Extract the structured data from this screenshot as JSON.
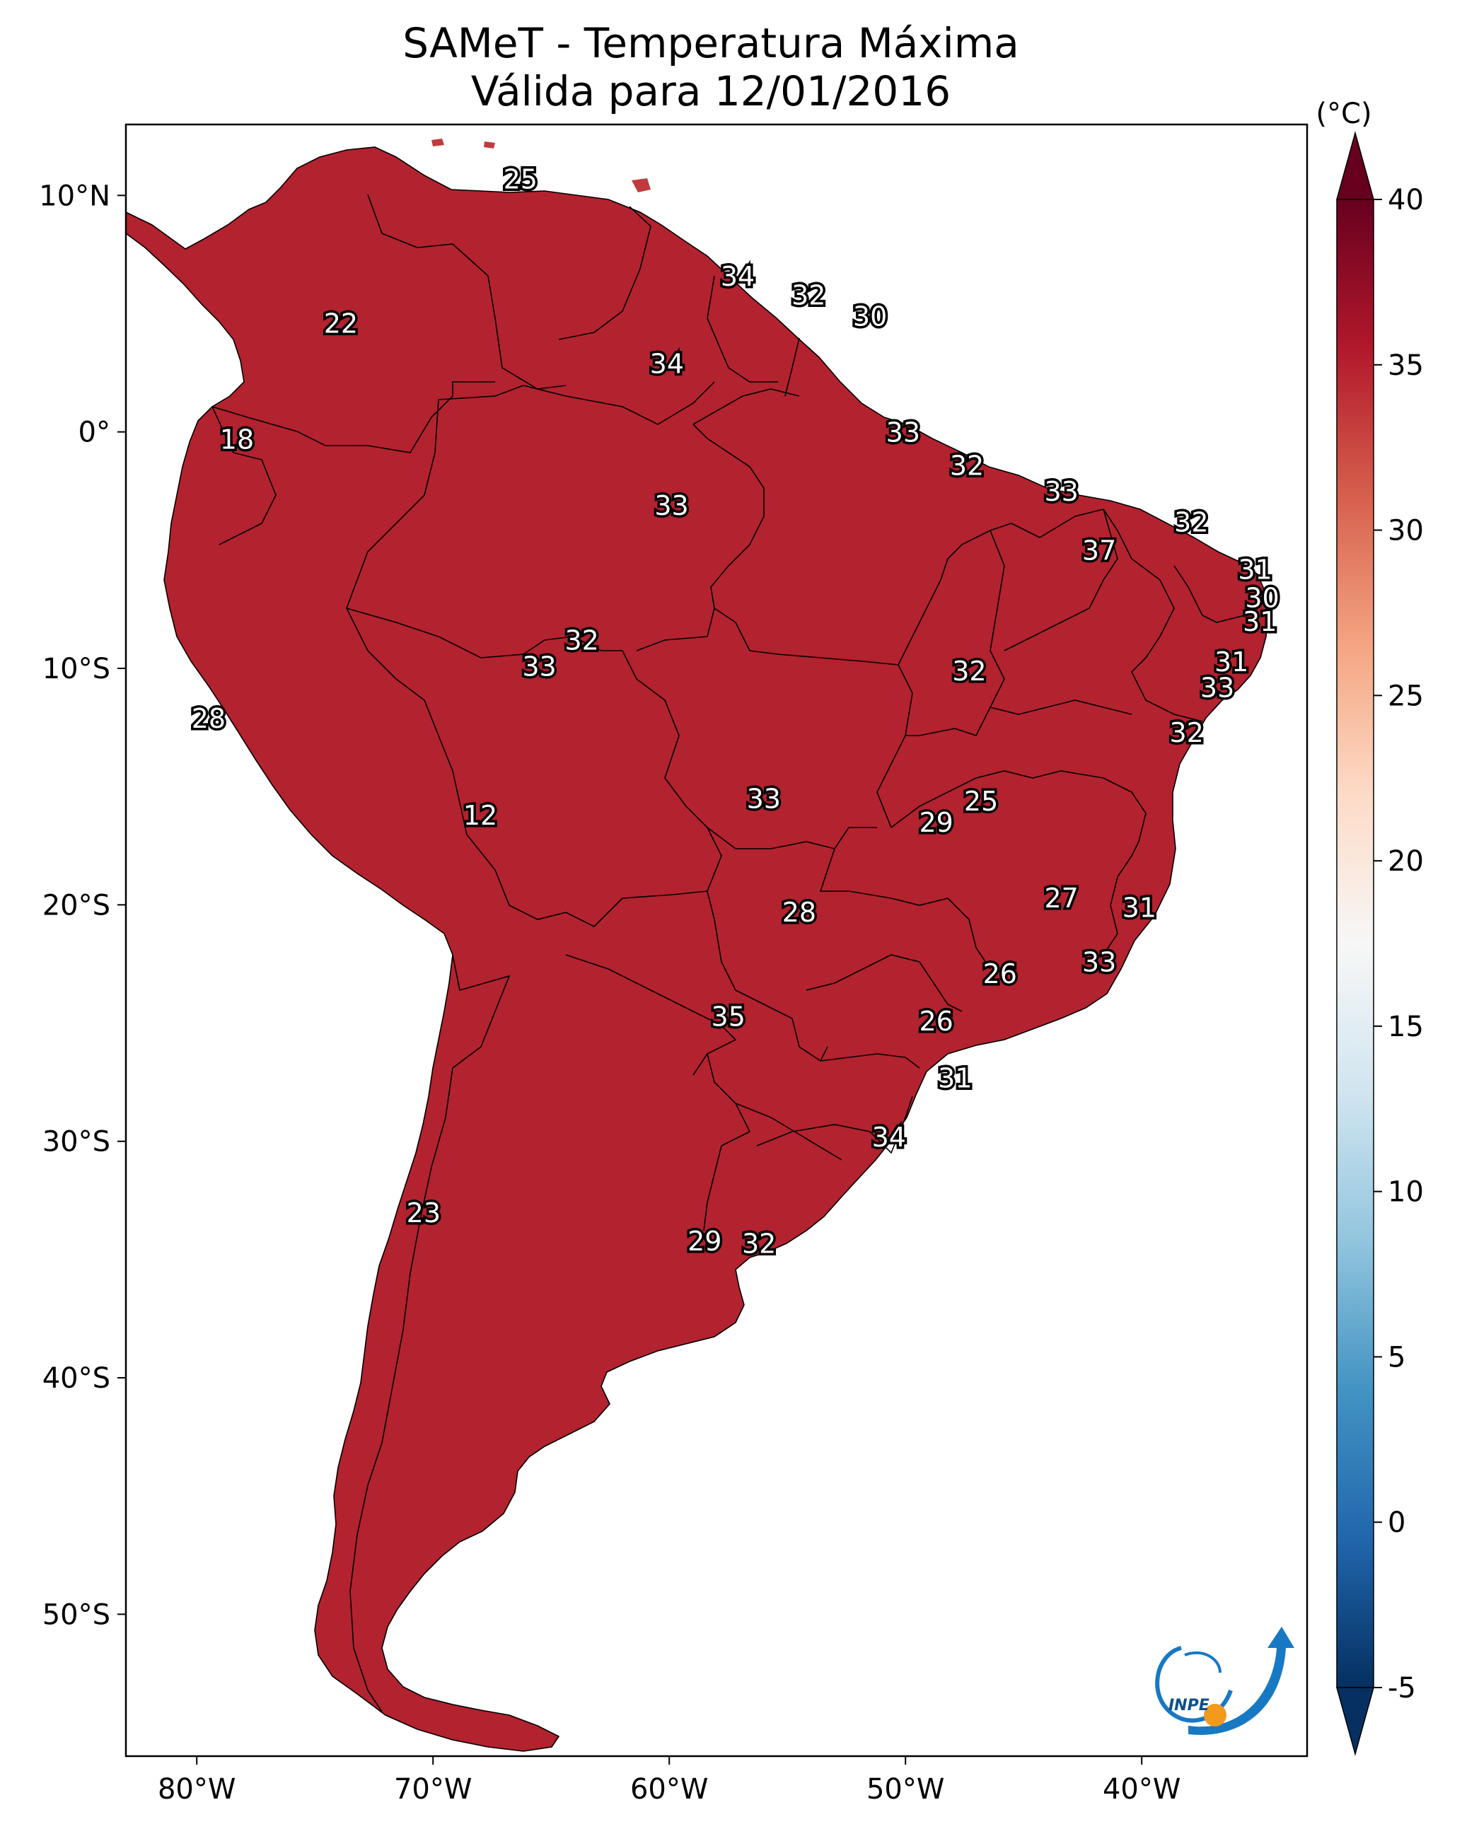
{
  "title": {
    "line1": "SAMeT - Temperatura Máxima",
    "line2": "Válida para 12/01/2016"
  },
  "axes": {
    "lon_ticks": [
      "80°W",
      "70°W",
      "60°W",
      "50°W",
      "40°W"
    ],
    "lat_ticks": [
      "10°N",
      "0°",
      "10°S",
      "20°S",
      "30°S",
      "40°S",
      "50°S"
    ],
    "extent": {
      "lon": [
        -83,
        -33
      ],
      "lat": [
        -56,
        13
      ]
    }
  },
  "colorbar": {
    "unit": "(°C)",
    "ticks": [
      "40",
      "35",
      "30",
      "25",
      "20",
      "15",
      "10",
      "5",
      "0",
      "-5"
    ],
    "range": [
      -5,
      40
    ],
    "colormap": "RdBu_r",
    "colors": [
      "#053061",
      "#2166ac",
      "#4393c3",
      "#92c5de",
      "#d1e5f0",
      "#f7f7f7",
      "#fddbc7",
      "#f4a582",
      "#d6604d",
      "#b2182b",
      "#67001f"
    ]
  },
  "logo": {
    "text": "INPE"
  },
  "labels": [
    {
      "v": "25",
      "lon": -66.3,
      "lat": 10.6
    },
    {
      "v": "34",
      "lon": -57.1,
      "lat": 6.5
    },
    {
      "v": "32",
      "lon": -54.1,
      "lat": 5.7
    },
    {
      "v": "30",
      "lon": -51.5,
      "lat": 4.8
    },
    {
      "v": "22",
      "lon": -73.9,
      "lat": 4.5
    },
    {
      "v": "34",
      "lon": -60.1,
      "lat": 2.8
    },
    {
      "v": "18",
      "lon": -78.3,
      "lat": -0.4
    },
    {
      "v": "33",
      "lon": -50.1,
      "lat": -0.1
    },
    {
      "v": "32",
      "lon": -47.4,
      "lat": -1.5
    },
    {
      "v": "33",
      "lon": -43.4,
      "lat": -2.6
    },
    {
      "v": "33",
      "lon": -59.9,
      "lat": -3.2
    },
    {
      "v": "32",
      "lon": -37.9,
      "lat": -3.9
    },
    {
      "v": "37",
      "lon": -41.8,
      "lat": -5.1
    },
    {
      "v": "31",
      "lon": -35.2,
      "lat": -5.9
    },
    {
      "v": "30",
      "lon": -34.9,
      "lat": -7.1
    },
    {
      "v": "31",
      "lon": -35.0,
      "lat": -8.1
    },
    {
      "v": "32",
      "lon": -63.7,
      "lat": -8.9
    },
    {
      "v": "33",
      "lon": -65.5,
      "lat": -10.0
    },
    {
      "v": "32",
      "lon": -47.3,
      "lat": -10.2
    },
    {
      "v": "31",
      "lon": -36.2,
      "lat": -9.8
    },
    {
      "v": "33",
      "lon": -36.8,
      "lat": -10.9
    },
    {
      "v": "28",
      "lon": -79.5,
      "lat": -12.2
    },
    {
      "v": "32",
      "lon": -38.1,
      "lat": -12.8
    },
    {
      "v": "33",
      "lon": -56.0,
      "lat": -15.6
    },
    {
      "v": "25",
      "lon": -46.8,
      "lat": -15.7
    },
    {
      "v": "12",
      "lon": -68.0,
      "lat": -16.3
    },
    {
      "v": "29",
      "lon": -48.7,
      "lat": -16.6
    },
    {
      "v": "27",
      "lon": -43.4,
      "lat": -19.8
    },
    {
      "v": "28",
      "lon": -54.5,
      "lat": -20.4
    },
    {
      "v": "31",
      "lon": -40.1,
      "lat": -20.2
    },
    {
      "v": "33",
      "lon": -41.8,
      "lat": -22.5
    },
    {
      "v": "26",
      "lon": -46.0,
      "lat": -23.0
    },
    {
      "v": "35",
      "lon": -57.5,
      "lat": -24.8
    },
    {
      "v": "26",
      "lon": -48.7,
      "lat": -25.0
    },
    {
      "v": "31",
      "lon": -47.9,
      "lat": -27.4
    },
    {
      "v": "34",
      "lon": -50.7,
      "lat": -29.9
    },
    {
      "v": "23",
      "lon": -70.4,
      "lat": -33.1
    },
    {
      "v": "29",
      "lon": -58.5,
      "lat": -34.3
    },
    {
      "v": "32",
      "lon": -56.2,
      "lat": -34.4
    }
  ]
}
